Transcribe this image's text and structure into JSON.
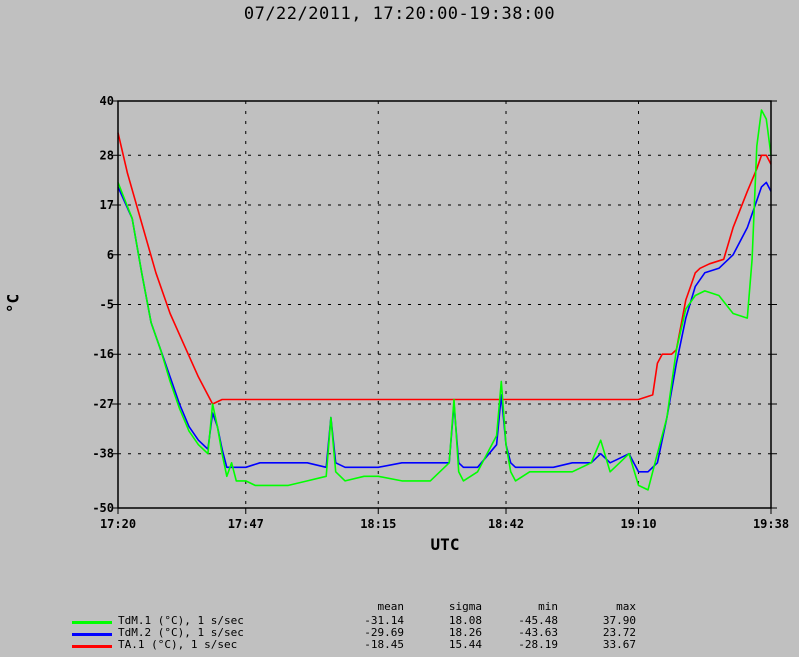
{
  "title": "07/22/2011, 17:20:00-19:38:00",
  "chart_data": {
    "type": "line",
    "title": "07/22/2011, 17:20:00-19:38:00",
    "xlabel": "UTC",
    "ylabel": "°C",
    "xlim": [
      "17:20",
      "19:38"
    ],
    "ylim": [
      -50,
      40
    ],
    "x_ticks": [
      "17:20",
      "17:47",
      "18:15",
      "18:42",
      "19:10",
      "19:38"
    ],
    "y_ticks": [
      "40",
      "28",
      "17",
      "6",
      "-5",
      "-16",
      "-27",
      "-38",
      "-50"
    ],
    "grid": true,
    "series": [
      {
        "name": "TdM.1 (°C), 1 s/sec",
        "color": "#00ff00",
        "x": [
          "17:20",
          "17:23",
          "17:25",
          "17:27",
          "17:29",
          "17:31",
          "17:33",
          "17:35",
          "17:37",
          "17:39",
          "17:40",
          "17:41",
          "17:42",
          "17:43",
          "17:44",
          "17:45",
          "17:47",
          "17:49",
          "17:50",
          "17:53",
          "17:56",
          "18:00",
          "18:04",
          "18:05",
          "18:06",
          "18:08",
          "18:12",
          "18:15",
          "18:20",
          "18:26",
          "18:30",
          "18:31",
          "18:32",
          "18:33",
          "18:36",
          "18:40",
          "18:41",
          "18:42",
          "18:43",
          "18:44",
          "18:47",
          "18:52",
          "18:56",
          "19:00",
          "19:02",
          "19:04",
          "19:06",
          "19:08",
          "19:10",
          "19:12",
          "19:14",
          "19:16",
          "19:18",
          "19:20",
          "19:22",
          "19:24",
          "19:27",
          "19:30",
          "19:33",
          "19:34",
          "19:35",
          "19:36",
          "19:37",
          "19:38"
        ],
        "y": [
          22,
          14,
          2,
          -9,
          -15,
          -22,
          -28,
          -33,
          -36,
          -38,
          -27,
          -32,
          -38,
          -43,
          -40,
          -44,
          -44,
          -45,
          -45,
          -45,
          -45,
          -44,
          -43,
          -30,
          -42,
          -44,
          -43,
          -43,
          -44,
          -44,
          -40,
          -26,
          -42,
          -44,
          -42,
          -34,
          -22,
          -36,
          -42,
          -44,
          -42,
          -42,
          -42,
          -40,
          -35,
          -42,
          -40,
          -38,
          -45,
          -46,
          -38,
          -30,
          -15,
          -6,
          -3,
          -2,
          -3,
          -7,
          -8,
          5,
          30,
          38,
          36,
          28
        ]
      },
      {
        "name": "TdM.2 (°C), 1 s/sec",
        "color": "#0000ff",
        "x": [
          "17:20",
          "17:23",
          "17:25",
          "17:27",
          "17:29",
          "17:31",
          "17:33",
          "17:35",
          "17:37",
          "17:39",
          "17:40",
          "17:41",
          "17:42",
          "17:43",
          "17:44",
          "17:47",
          "17:50",
          "17:53",
          "17:56",
          "18:00",
          "18:04",
          "18:05",
          "18:06",
          "18:08",
          "18:12",
          "18:15",
          "18:20",
          "18:26",
          "18:30",
          "18:31",
          "18:32",
          "18:33",
          "18:36",
          "18:40",
          "18:41",
          "18:42",
          "18:43",
          "18:44",
          "18:47",
          "18:52",
          "18:56",
          "19:00",
          "19:02",
          "19:04",
          "19:06",
          "19:08",
          "19:10",
          "19:12",
          "19:14",
          "19:16",
          "19:18",
          "19:20",
          "19:22",
          "19:24",
          "19:27",
          "19:30",
          "19:33",
          "19:35",
          "19:36",
          "19:37",
          "19:38"
        ],
        "y": [
          21,
          14,
          2,
          -9,
          -15,
          -21,
          -27,
          -32,
          -35,
          -37,
          -29,
          -32,
          -37,
          -41,
          -41,
          -41,
          -40,
          -40,
          -40,
          -40,
          -41,
          -30,
          -40,
          -41,
          -41,
          -41,
          -40,
          -40,
          -40,
          -27,
          -40,
          -41,
          -41,
          -36,
          -25,
          -36,
          -40,
          -41,
          -41,
          -41,
          -40,
          -40,
          -38,
          -40,
          -39,
          -38,
          -42,
          -42,
          -40,
          -30,
          -18,
          -8,
          -1,
          2,
          3,
          6,
          12,
          18,
          21,
          22,
          20
        ]
      },
      {
        "name": "TA.1 (°C), 1 s/sec",
        "color": "#ff0000",
        "x": [
          "17:20",
          "17:22",
          "17:25",
          "17:28",
          "17:31",
          "17:34",
          "17:37",
          "17:40",
          "17:42",
          "17:45",
          "17:50",
          "17:55",
          "18:00",
          "18:10",
          "18:20",
          "18:30",
          "18:40",
          "18:50",
          "19:00",
          "19:05",
          "19:10",
          "19:13",
          "19:14",
          "19:15",
          "19:17",
          "19:18",
          "19:20",
          "19:21",
          "19:22",
          "19:23",
          "19:25",
          "19:28",
          "19:30",
          "19:33",
          "19:35",
          "19:36",
          "19:37",
          "19:38"
        ],
        "y": [
          33,
          24,
          13,
          2,
          -7,
          -14,
          -21,
          -27,
          -26,
          -26,
          -26,
          -26,
          -26,
          -26,
          -26,
          -26,
          -26,
          -26,
          -26,
          -26,
          -26,
          -25,
          -18,
          -16,
          -16,
          -15,
          -4,
          -1,
          2,
          3,
          4,
          5,
          12,
          20,
          25,
          28,
          28,
          26
        ]
      }
    ],
    "stats_headers": [
      "mean",
      "sigma",
      "min",
      "max"
    ],
    "stats": [
      {
        "mean": "-31.14",
        "sigma": "18.08",
        "min": "-45.48",
        "max": "37.90"
      },
      {
        "mean": "-29.69",
        "sigma": "18.26",
        "min": "-43.63",
        "max": "23.72"
      },
      {
        "mean": "-18.45",
        "sigma": "15.44",
        "min": "-28.19",
        "max": "33.67"
      }
    ]
  }
}
